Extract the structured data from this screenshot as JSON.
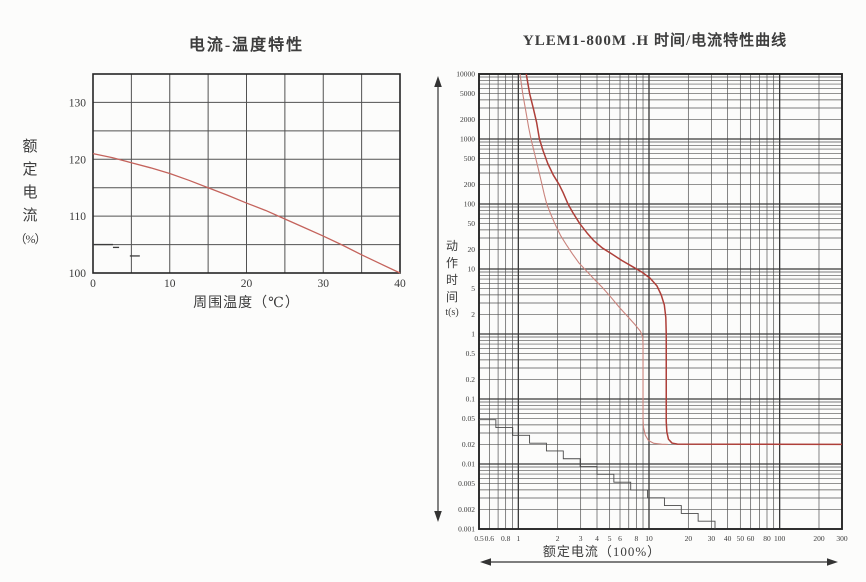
{
  "page": {
    "background": "#fcfcfb"
  },
  "colors": {
    "grid_minor": "#525252",
    "grid_major": "#383838",
    "border": "#262626",
    "text": "#3a3a3a",
    "curve_derating": "#c4635c",
    "curve_trip_max": "#ae3f39",
    "curve_trip_min": "#ca837c",
    "stair_line": "#4a4a4a",
    "arrow": "#333333"
  },
  "decorations": {
    "y_axis_arrow": "double-arrow-vertical",
    "x_axis_arrow": "double-arrow-horizontal"
  },
  "chart_data": [
    {
      "type": "line",
      "title": "电流-温度特性",
      "xlabel": "周围温度（℃）",
      "ylabel": "额定电流（%）",
      "ylabel_chars": [
        "额",
        "定",
        "电",
        "流",
        "（%）"
      ],
      "xlim": [
        0,
        40
      ],
      "ylim": [
        100,
        135
      ],
      "x_grid_step": 5,
      "y_grid_step": 5,
      "x_tick_labels": [
        "0",
        "10",
        "20",
        "30",
        "40"
      ],
      "x_tick_values": [
        0,
        10,
        20,
        30,
        40
      ],
      "y_tick_labels": [
        "100",
        "110",
        "120",
        "130"
      ],
      "y_tick_values": [
        100,
        110,
        120,
        130
      ],
      "grid": "on",
      "series": [
        {
          "name": "rated-current-vs-temperature",
          "points": [
            [
              0,
              121
            ],
            [
              2.5,
              120.3
            ],
            [
              5,
              119.4
            ],
            [
              7.5,
              118.5
            ],
            [
              10,
              117.5
            ],
            [
              12.5,
              116.3
            ],
            [
              15,
              115
            ],
            [
              17.5,
              113.7
            ],
            [
              20,
              112.3
            ],
            [
              22.5,
              111
            ],
            [
              25,
              109.5
            ],
            [
              27.5,
              108
            ],
            [
              30,
              106.5
            ],
            [
              32.5,
              104.9
            ],
            [
              35,
              103.2
            ],
            [
              37.5,
              101.6
            ],
            [
              40,
              100
            ]
          ]
        }
      ],
      "scan_artifacts": [
        {
          "points": [
            [
              0,
              105
            ],
            [
              2.6,
              105
            ]
          ]
        },
        {
          "points": [
            [
              2.6,
              104.5
            ],
            [
              3.4,
              104.5
            ]
          ]
        },
        {
          "points": [
            [
              4.8,
              103
            ],
            [
              6.1,
              103
            ]
          ]
        }
      ]
    },
    {
      "type": "line-loglog",
      "title": "YLEM1-800M .H 时间/电流特性曲线",
      "xlabel": "额定电流（100%）",
      "ylabel": "动作时间 t(s)",
      "ylabel_chars": [
        "动",
        "作",
        "时",
        "间",
        "t(s)"
      ],
      "xlim": [
        0.5,
        300
      ],
      "ylim": [
        0.001,
        10000
      ],
      "x_scale": "log",
      "y_scale": "log",
      "grid": "log-minor-on",
      "x_tick_labels": [
        "0.5",
        "0.6",
        "0.8",
        "1",
        "2",
        "3",
        "4",
        "5",
        "6",
        "8",
        "10",
        "20",
        "30",
        "40",
        "50",
        "60",
        "80",
        "100",
        "200",
        "300"
      ],
      "x_tick_values": [
        0.5,
        0.6,
        0.8,
        1,
        2,
        3,
        4,
        5,
        6,
        8,
        10,
        20,
        30,
        40,
        50,
        60,
        80,
        100,
        200,
        300
      ],
      "y_tick_labels": [
        "10000",
        "5000",
        "2000",
        "1000",
        "500",
        "200",
        "100",
        "50",
        "20",
        "10",
        "5",
        "2",
        "1",
        "0.5",
        "0.2",
        "0.1",
        "0.05",
        "0.02",
        "0.01",
        "0.005",
        "0.002",
        "0.001"
      ],
      "y_tick_values": [
        10000,
        5000,
        2000,
        1000,
        500,
        200,
        100,
        50,
        20,
        10,
        5,
        2,
        1,
        0.5,
        0.2,
        0.1,
        0.05,
        0.02,
        0.01,
        0.005,
        0.002,
        0.001
      ],
      "series": [
        {
          "name": "trip-time-max",
          "points": [
            [
              1.15,
              10000
            ],
            [
              1.22,
              5000
            ],
            [
              1.3,
              3000
            ],
            [
              1.38,
              1800
            ],
            [
              1.45,
              1000
            ],
            [
              1.55,
              650
            ],
            [
              1.68,
              420
            ],
            [
              1.85,
              280
            ],
            [
              2.05,
              200
            ],
            [
              2.2,
              150
            ],
            [
              2.4,
              100
            ],
            [
              2.6,
              75
            ],
            [
              2.95,
              50
            ],
            [
              3.35,
              36
            ],
            [
              3.8,
              27
            ],
            [
              4.4,
              21
            ],
            [
              5.2,
              17
            ],
            [
              6.2,
              13.5
            ],
            [
              7.4,
              11
            ],
            [
              8.8,
              9
            ],
            [
              10.2,
              7.2
            ],
            [
              11.5,
              5.5
            ],
            [
              12.4,
              4
            ],
            [
              13.1,
              2.8
            ],
            [
              13.45,
              1.8
            ],
            [
              13.55,
              1.0
            ],
            [
              13.55,
              0.045
            ],
            [
              13.7,
              0.031
            ],
            [
              14.1,
              0.024
            ],
            [
              15,
              0.021
            ],
            [
              16.5,
              0.0202
            ],
            [
              300,
              0.02
            ]
          ]
        },
        {
          "name": "trip-time-min",
          "points": [
            [
              1.03,
              10000
            ],
            [
              1.08,
              5000
            ],
            [
              1.13,
              3000
            ],
            [
              1.2,
              1500
            ],
            [
              1.25,
              1000
            ],
            [
              1.33,
              600
            ],
            [
              1.42,
              350
            ],
            [
              1.5,
              220
            ],
            [
              1.58,
              140
            ],
            [
              1.65,
              100
            ],
            [
              1.78,
              68
            ],
            [
              1.9,
              50
            ],
            [
              2.1,
              33
            ],
            [
              2.35,
              23
            ],
            [
              2.6,
              17
            ],
            [
              2.9,
              12.5
            ],
            [
              3.3,
              9.5
            ],
            [
              3.8,
              7
            ],
            [
              4.4,
              5.2
            ],
            [
              5.1,
              3.7
            ],
            [
              5.9,
              2.6
            ],
            [
              6.8,
              1.9
            ],
            [
              7.8,
              1.4
            ],
            [
              8.6,
              1.1
            ],
            [
              8.95,
              0.9
            ],
            [
              9.0,
              0.7
            ],
            [
              9.0,
              0.05
            ],
            [
              9.07,
              0.037
            ],
            [
              9.35,
              0.028
            ],
            [
              9.9,
              0.023
            ],
            [
              10.9,
              0.0208
            ],
            [
              12.5,
              0.0202
            ],
            [
              14,
              0.02
            ]
          ]
        }
      ],
      "stair_artifact": {
        "name": "scan-stair-line",
        "from": [
          0.5,
          0.048
        ],
        "to": [
          32,
          0.001
        ],
        "steps": 14
      }
    }
  ]
}
